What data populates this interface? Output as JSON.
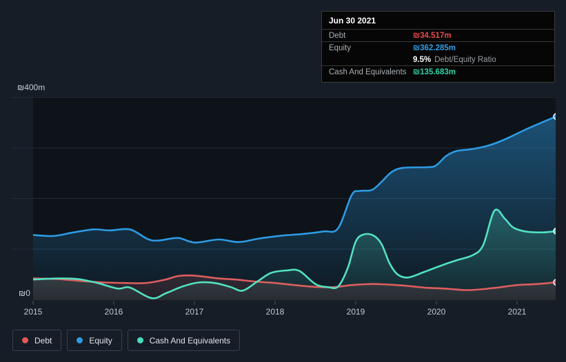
{
  "tooltip": {
    "date": "Jun 30 2021",
    "debt_label": "Debt",
    "debt_value": "₪34.517m",
    "debt_color": "#ec4b4b",
    "equity_label": "Equity",
    "equity_value": "₪362.285m",
    "equity_color": "#2f9fe8",
    "ratio_value": "9.5%",
    "ratio_label": "Debt/Equity Ratio",
    "cash_label": "Cash And Equivalents",
    "cash_value": "₪135.683m",
    "cash_color": "#2fd3a8"
  },
  "legend": {
    "items": [
      {
        "label": "Debt",
        "color": "#e25757"
      },
      {
        "label": "Equity",
        "color": "#2e9be4"
      },
      {
        "label": "Cash And Equivalents",
        "color": "#45dfbe"
      }
    ]
  },
  "chart_data": {
    "type": "area",
    "title": "Debt to Equity History",
    "currency_unit": "₪m",
    "x_axis": {
      "tick_years": [
        2015,
        2016,
        2017,
        2018,
        2019,
        2020,
        2021
      ]
    },
    "y_axis": {
      "min": 0,
      "max": 400,
      "gridline_values": [
        100,
        200,
        300,
        400
      ],
      "label_top": "₪400m",
      "label_zero": "₪0"
    },
    "legend_position": "bottom-left",
    "grid": true,
    "series": [
      {
        "name": "Equity",
        "color": "#2e9be4",
        "points": [
          [
            2015.0,
            128
          ],
          [
            2015.25,
            126
          ],
          [
            2015.5,
            133
          ],
          [
            2015.75,
            139
          ],
          [
            2015.95,
            137
          ],
          [
            2016.2,
            139
          ],
          [
            2016.42,
            120
          ],
          [
            2016.55,
            117
          ],
          [
            2016.8,
            122
          ],
          [
            2017.0,
            113
          ],
          [
            2017.3,
            119
          ],
          [
            2017.55,
            114
          ],
          [
            2017.8,
            121
          ],
          [
            2018.1,
            127
          ],
          [
            2018.35,
            130
          ],
          [
            2018.6,
            135
          ],
          [
            2018.78,
            141
          ],
          [
            2018.95,
            207
          ],
          [
            2019.05,
            215
          ],
          [
            2019.2,
            217
          ],
          [
            2019.32,
            233
          ],
          [
            2019.45,
            253
          ],
          [
            2019.6,
            261
          ],
          [
            2019.9,
            262
          ],
          [
            2020.0,
            266
          ],
          [
            2020.12,
            284
          ],
          [
            2020.25,
            294
          ],
          [
            2020.45,
            298
          ],
          [
            2020.65,
            305
          ],
          [
            2020.85,
            317
          ],
          [
            2021.1,
            336
          ],
          [
            2021.3,
            350
          ],
          [
            2021.49,
            362.285
          ]
        ]
      },
      {
        "name": "Cash And Equivalents",
        "color": "#53e2c1",
        "points": [
          [
            2015.0,
            40
          ],
          [
            2015.3,
            42
          ],
          [
            2015.55,
            41
          ],
          [
            2015.8,
            33
          ],
          [
            2016.05,
            22
          ],
          [
            2016.2,
            24
          ],
          [
            2016.47,
            3
          ],
          [
            2016.65,
            13
          ],
          [
            2016.85,
            26
          ],
          [
            2017.05,
            34
          ],
          [
            2017.25,
            33
          ],
          [
            2017.45,
            25
          ],
          [
            2017.6,
            18
          ],
          [
            2017.78,
            36
          ],
          [
            2017.95,
            53
          ],
          [
            2018.15,
            58
          ],
          [
            2018.3,
            57
          ],
          [
            2018.5,
            31
          ],
          [
            2018.65,
            25
          ],
          [
            2018.78,
            26
          ],
          [
            2018.9,
            62
          ],
          [
            2019.0,
            115
          ],
          [
            2019.1,
            129
          ],
          [
            2019.22,
            127
          ],
          [
            2019.32,
            110
          ],
          [
            2019.42,
            72
          ],
          [
            2019.52,
            50
          ],
          [
            2019.65,
            44
          ],
          [
            2019.85,
            55
          ],
          [
            2020.05,
            67
          ],
          [
            2020.25,
            78
          ],
          [
            2020.45,
            88
          ],
          [
            2020.58,
            108
          ],
          [
            2020.72,
            176
          ],
          [
            2020.85,
            160
          ],
          [
            2020.95,
            143
          ],
          [
            2021.1,
            135
          ],
          [
            2021.3,
            133
          ],
          [
            2021.49,
            135.683
          ]
        ]
      },
      {
        "name": "Debt",
        "color": "#dd5e60",
        "points": [
          [
            2015.0,
            42
          ],
          [
            2015.3,
            41
          ],
          [
            2015.6,
            37
          ],
          [
            2015.9,
            34
          ],
          [
            2016.15,
            33
          ],
          [
            2016.4,
            33
          ],
          [
            2016.62,
            39
          ],
          [
            2016.8,
            47
          ],
          [
            2016.95,
            48
          ],
          [
            2017.1,
            46
          ],
          [
            2017.3,
            42
          ],
          [
            2017.5,
            40
          ],
          [
            2017.75,
            36
          ],
          [
            2018.0,
            33
          ],
          [
            2018.3,
            28
          ],
          [
            2018.55,
            25
          ],
          [
            2018.75,
            25
          ],
          [
            2018.95,
            29
          ],
          [
            2019.2,
            31
          ],
          [
            2019.4,
            30
          ],
          [
            2019.6,
            28
          ],
          [
            2019.85,
            24
          ],
          [
            2020.1,
            22
          ],
          [
            2020.4,
            19
          ],
          [
            2020.7,
            23
          ],
          [
            2021.0,
            29
          ],
          [
            2021.25,
            31
          ],
          [
            2021.49,
            34.517
          ]
        ]
      }
    ]
  },
  "colors": {
    "background": "#161d27",
    "plot_canvas": "#0d1319",
    "gridline": "#232b37",
    "tick": "#4a5360",
    "axis_text": "#c6cbd3",
    "dot_stroke": "#f2f5f7"
  }
}
